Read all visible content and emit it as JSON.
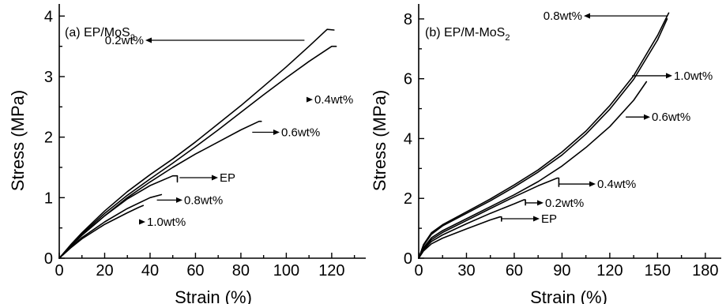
{
  "chart_data": [
    {
      "type": "line",
      "title": "(a) EP/MoS",
      "title_subscript": "2",
      "xlabel": "Strain (%)",
      "ylabel": "Stress (MPa)",
      "xlim": [
        0,
        135
      ],
      "ylim": [
        0,
        4.2
      ],
      "xticks": [
        0,
        20,
        40,
        60,
        80,
        100,
        120
      ],
      "yticks": [
        0,
        1,
        2,
        3,
        4
      ],
      "grid": false,
      "series": [
        {
          "name": "0.2wt%",
          "x": [
            0,
            5,
            10,
            20,
            30,
            40,
            50,
            60,
            70,
            80,
            90,
            100,
            110,
            118,
            121
          ],
          "y": [
            0,
            0.22,
            0.42,
            0.78,
            1.1,
            1.38,
            1.64,
            1.92,
            2.22,
            2.52,
            2.84,
            3.16,
            3.5,
            3.78,
            3.77
          ]
        },
        {
          "name": "0.4wt%",
          "x": [
            0,
            5,
            10,
            20,
            30,
            40,
            50,
            60,
            70,
            80,
            90,
            100,
            110,
            120,
            122
          ],
          "y": [
            0,
            0.21,
            0.4,
            0.74,
            1.04,
            1.31,
            1.57,
            1.84,
            2.12,
            2.41,
            2.7,
            2.98,
            3.25,
            3.5,
            3.5
          ]
        },
        {
          "name": "0.6wt%",
          "x": [
            0,
            5,
            10,
            20,
            30,
            40,
            50,
            60,
            70,
            80,
            88,
            89
          ],
          "y": [
            0,
            0.2,
            0.38,
            0.7,
            1.0,
            1.26,
            1.5,
            1.72,
            1.92,
            2.12,
            2.26,
            2.26
          ]
        },
        {
          "name": "EP",
          "x": [
            0,
            5,
            10,
            20,
            30,
            40,
            50,
            52,
            52
          ],
          "y": [
            0,
            0.2,
            0.38,
            0.7,
            0.98,
            1.2,
            1.36,
            1.36,
            1.26
          ]
        },
        {
          "name": "0.8wt%",
          "x": [
            0,
            5,
            10,
            20,
            30,
            40,
            45
          ],
          "y": [
            0,
            0.18,
            0.34,
            0.6,
            0.82,
            1.0,
            1.05
          ]
        },
        {
          "name": "1.0wt%",
          "x": [
            0,
            5,
            10,
            20,
            30,
            35,
            37
          ],
          "y": [
            0,
            0.17,
            0.32,
            0.56,
            0.75,
            0.84,
            0.87
          ]
        }
      ],
      "annotations": [
        {
          "text": "0.2wt%",
          "x_from": 108,
          "y": 3.6
        },
        {
          "text": "0.4wt%",
          "x_from": 110,
          "y": 2.62
        },
        {
          "text": "0.6wt%",
          "x_from": 85,
          "y": 2.08
        },
        {
          "text": "EP",
          "x_from": 53,
          "y": 1.33
        },
        {
          "text": "0.8wt%",
          "x_from": 43,
          "y": 0.96
        },
        {
          "text": "1.0wt%",
          "x_from": 36,
          "y": 0.6
        }
      ]
    },
    {
      "type": "line",
      "title": "(b) EP/M-MoS",
      "title_subscript": "2",
      "xlabel": "Strain (%)",
      "ylabel": "Stress (MPa)",
      "xlim": [
        0,
        190
      ],
      "ylim": [
        0,
        8.5
      ],
      "xticks": [
        0,
        30,
        60,
        90,
        120,
        150,
        180
      ],
      "yticks": [
        0,
        2,
        4,
        6,
        8
      ],
      "grid": false,
      "series": [
        {
          "name": "0.8wt%",
          "x": [
            0,
            3,
            8,
            15,
            30,
            45,
            60,
            75,
            90,
            105,
            120,
            135,
            150,
            157
          ],
          "y": [
            0,
            0.45,
            0.85,
            1.12,
            1.55,
            1.98,
            2.45,
            2.95,
            3.55,
            4.25,
            5.1,
            6.1,
            7.45,
            8.2
          ]
        },
        {
          "name": "1.0wt%",
          "x": [
            0,
            3,
            8,
            15,
            30,
            45,
            60,
            75,
            90,
            105,
            120,
            135,
            150,
            156
          ],
          "y": [
            0,
            0.42,
            0.8,
            1.08,
            1.5,
            1.92,
            2.38,
            2.88,
            3.45,
            4.15,
            4.98,
            5.98,
            7.3,
            8.0
          ]
        },
        {
          "name": "0.6wt%",
          "x": [
            0,
            3,
            8,
            15,
            30,
            45,
            60,
            75,
            90,
            105,
            120,
            135,
            143
          ],
          "y": [
            0,
            0.35,
            0.68,
            0.92,
            1.32,
            1.72,
            2.12,
            2.56,
            3.08,
            3.7,
            4.4,
            5.28,
            5.9
          ]
        },
        {
          "name": "0.4wt%",
          "x": [
            0,
            3,
            8,
            15,
            30,
            45,
            60,
            75,
            87,
            88,
            88
          ],
          "y": [
            0,
            0.32,
            0.62,
            0.86,
            1.26,
            1.66,
            2.05,
            2.42,
            2.68,
            2.68,
            2.4
          ]
        },
        {
          "name": "0.2wt%",
          "x": [
            0,
            3,
            8,
            15,
            30,
            45,
            60,
            66,
            67,
            67
          ],
          "y": [
            0,
            0.28,
            0.56,
            0.78,
            1.15,
            1.5,
            1.82,
            1.95,
            1.95,
            1.78
          ]
        },
        {
          "name": "EP",
          "x": [
            0,
            3,
            8,
            15,
            30,
            45,
            51,
            52,
            52
          ],
          "y": [
            0,
            0.24,
            0.48,
            0.67,
            0.98,
            1.28,
            1.38,
            1.38,
            1.24
          ]
        }
      ],
      "annotations": [
        {
          "text": "0.8wt%",
          "x_from": 156,
          "y": 8.1
        },
        {
          "text": "1.0wt%",
          "x_from": 134,
          "y": 6.1
        },
        {
          "text": "0.6wt%",
          "x_from": 130,
          "y": 4.72
        },
        {
          "text": "0.4wt%",
          "x_from": 88,
          "y": 2.48
        },
        {
          "text": "0.2wt%",
          "x_from": 67,
          "y": 1.85
        },
        {
          "text": "EP",
          "x_from": 52,
          "y": 1.32
        }
      ]
    }
  ]
}
